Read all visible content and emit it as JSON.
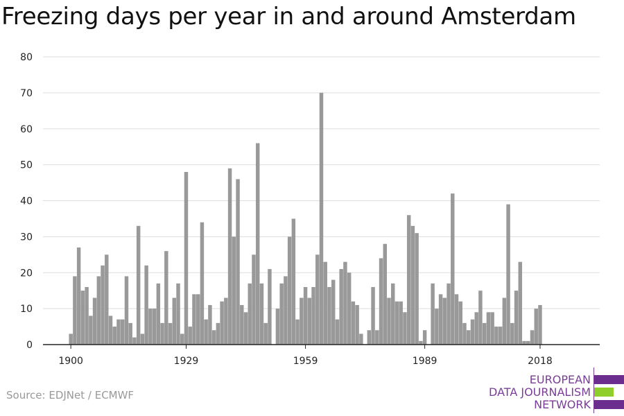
{
  "title": "Freezing days per year in and around Amsterdam",
  "source": "Source: EDJNet / ECMWF",
  "logo": {
    "line1": "EUROPEAN",
    "line2": "DATA JOURNALISM",
    "line3": "NETWORK",
    "colors": {
      "purple": "#6b2e8e",
      "green": "#8fce2b"
    }
  },
  "chart_data": {
    "type": "bar",
    "title": "Freezing days per year in and around Amsterdam",
    "xlabel": "",
    "ylabel": "",
    "bar_color": "#999999",
    "grid": true,
    "ylim": [
      0,
      80
    ],
    "yticks": [
      0,
      10,
      20,
      30,
      40,
      50,
      60,
      70,
      80
    ],
    "xticks": [
      1900,
      1929,
      1959,
      1989,
      2018
    ],
    "xlim": [
      1893,
      2033
    ],
    "x": [
      1900,
      1901,
      1902,
      1903,
      1904,
      1905,
      1906,
      1907,
      1908,
      1909,
      1910,
      1911,
      1912,
      1913,
      1914,
      1915,
      1916,
      1917,
      1918,
      1919,
      1920,
      1921,
      1922,
      1923,
      1924,
      1925,
      1926,
      1927,
      1928,
      1929,
      1930,
      1931,
      1932,
      1933,
      1934,
      1935,
      1936,
      1937,
      1938,
      1939,
      1940,
      1941,
      1942,
      1943,
      1944,
      1945,
      1946,
      1947,
      1948,
      1949,
      1950,
      1951,
      1952,
      1953,
      1954,
      1955,
      1956,
      1957,
      1958,
      1959,
      1960,
      1961,
      1962,
      1963,
      1964,
      1965,
      1966,
      1967,
      1968,
      1969,
      1970,
      1971,
      1972,
      1973,
      1974,
      1975,
      1976,
      1977,
      1978,
      1979,
      1980,
      1981,
      1982,
      1983,
      1984,
      1985,
      1986,
      1987,
      1988,
      1989,
      1990,
      1991,
      1992,
      1993,
      1994,
      1995,
      1996,
      1997,
      1998,
      1999,
      2000,
      2001,
      2002,
      2003,
      2004,
      2005,
      2006,
      2007,
      2008,
      2009,
      2010,
      2011,
      2012,
      2013,
      2014,
      2015,
      2016,
      2017,
      2018
    ],
    "values": [
      3,
      19,
      27,
      15,
      16,
      8,
      13,
      19,
      22,
      25,
      8,
      5,
      7,
      7,
      19,
      6,
      2,
      33,
      3,
      22,
      10,
      10,
      17,
      6,
      26,
      6,
      13,
      17,
      3,
      48,
      5,
      14,
      14,
      34,
      7,
      11,
      4,
      6,
      12,
      13,
      49,
      30,
      46,
      11,
      9,
      17,
      25,
      56,
      17,
      6,
      21,
      0,
      10,
      17,
      19,
      30,
      35,
      7,
      13,
      16,
      13,
      16,
      25,
      70,
      23,
      16,
      18,
      7,
      21,
      23,
      20,
      12,
      11,
      3,
      0,
      4,
      16,
      4,
      24,
      28,
      13,
      17,
      12,
      12,
      9,
      36,
      33,
      31,
      1,
      4,
      0,
      17,
      10,
      14,
      13,
      17,
      42,
      14,
      12,
      6,
      4,
      7,
      9,
      15,
      6,
      9,
      9,
      5,
      5,
      13,
      39,
      6,
      15,
      23,
      1,
      1,
      4,
      10,
      11
    ]
  }
}
